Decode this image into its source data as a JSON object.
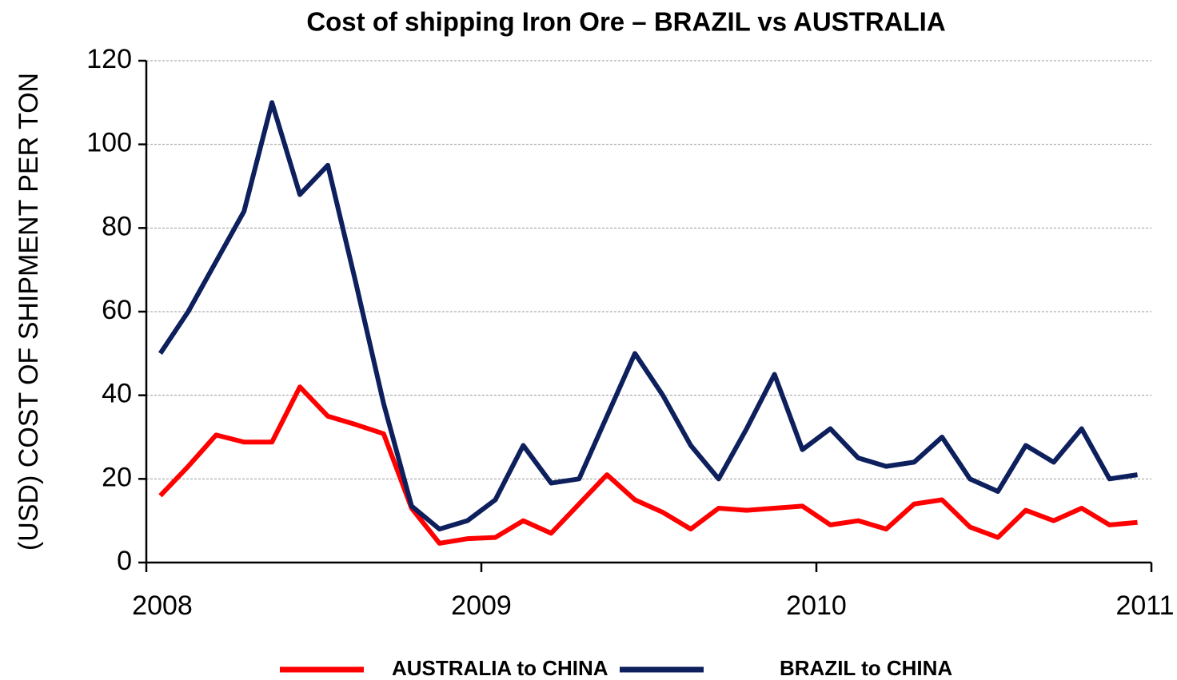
{
  "chart_data": {
    "type": "line",
    "title": "Cost of shipping Iron Ore – BRAZIL vs AUSTRALIA",
    "y_label": "(USD) COST OF SHIPMENT PER TON",
    "x": [
      2008.0417,
      2008.125,
      2008.2083,
      2008.2917,
      2008.375,
      2008.4583,
      2008.5417,
      2008.625,
      2008.7083,
      2008.7917,
      2008.875,
      2008.9583,
      2009.0417,
      2009.125,
      2009.2083,
      2009.2917,
      2009.375,
      2009.4583,
      2009.5417,
      2009.625,
      2009.7083,
      2009.7917,
      2009.875,
      2009.9583,
      2010.0417,
      2010.125,
      2010.2083,
      2010.2917,
      2010.375,
      2010.4583,
      2010.5417,
      2010.625,
      2010.7083,
      2010.7917,
      2010.875,
      2010.9583
    ],
    "series": [
      {
        "name": "AUSTRALIA to CHINA",
        "color": "#ff0000",
        "values": [
          16,
          23,
          30.5,
          28.8,
          28.8,
          42,
          35,
          33,
          30.8,
          13,
          4.6,
          5.7,
          6,
          10,
          7,
          14,
          21,
          15,
          12,
          8,
          13,
          12.5,
          13,
          13.5,
          9,
          10,
          8,
          14,
          15,
          8.5,
          6,
          12.5,
          10,
          13,
          9,
          9.6
        ]
      },
      {
        "name": "BRAZIL to CHINA",
        "color": "#0d1f5c",
        "values": [
          50,
          60,
          72,
          84,
          110,
          88,
          95,
          67,
          38,
          13.5,
          8,
          10,
          15,
          28,
          19,
          20,
          35,
          50,
          40,
          28,
          20,
          32,
          45,
          27,
          32,
          25,
          23,
          24,
          30,
          20,
          17,
          28,
          24,
          32,
          20,
          21
        ]
      }
    ],
    "xlim": [
      2008,
      2011
    ],
    "xticks": [
      2008,
      2009,
      2010,
      2011
    ],
    "ylim": [
      0,
      120
    ],
    "yticks": [
      0,
      20,
      40,
      60,
      80,
      100,
      120
    ],
    "grid": true,
    "legend": "bottom"
  }
}
